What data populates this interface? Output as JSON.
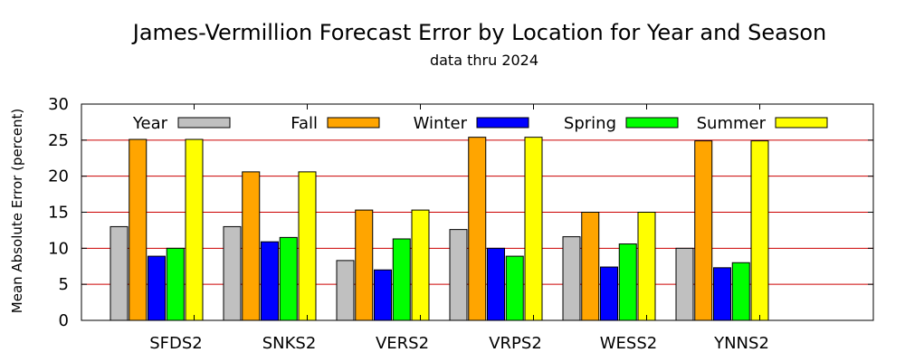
{
  "chart_data": {
    "type": "bar",
    "title": "James-Vermillion Forecast Error by Location for Year and Season",
    "subtitle": "data thru 2024",
    "xlabel": "",
    "ylabel": "Mean Absolute Error (percent)",
    "ylim": [
      0,
      30
    ],
    "yticks": [
      "0",
      "5",
      "10",
      "15",
      "20",
      "25",
      "30"
    ],
    "grid": "horizontal",
    "legend_position": "top",
    "categories": [
      "SFDS2",
      "SNKS2",
      "VERS2",
      "VRPS2",
      "WESS2",
      "YNNS2"
    ],
    "series": [
      {
        "name": "Year",
        "color": "#c0c0c0",
        "values": [
          13.0,
          13.0,
          8.3,
          12.6,
          11.6,
          10.0
        ]
      },
      {
        "name": "Fall",
        "color": "#ffa500",
        "values": [
          25.1,
          20.6,
          15.3,
          25.4,
          15.0,
          24.9
        ]
      },
      {
        "name": "Winter",
        "color": "#0000ff",
        "values": [
          8.9,
          10.9,
          7.0,
          10.0,
          7.4,
          7.3
        ]
      },
      {
        "name": "Spring",
        "color": "#00ff00",
        "values": [
          10.0,
          11.5,
          11.3,
          8.9,
          10.6,
          8.0
        ]
      },
      {
        "name": "Summer",
        "color": "#ffff00",
        "values": [
          25.1,
          20.6,
          15.3,
          25.4,
          15.0,
          24.9
        ]
      }
    ],
    "gridline_color": "#cc0000"
  }
}
